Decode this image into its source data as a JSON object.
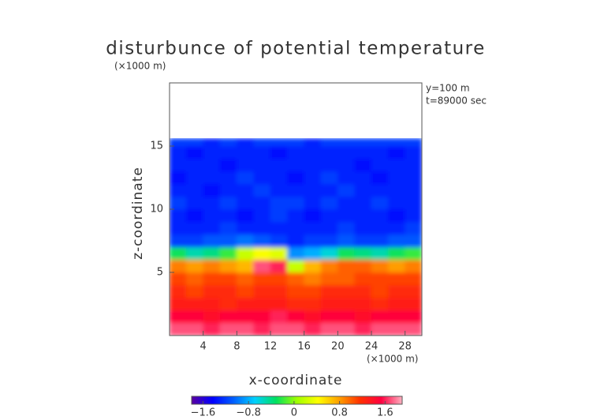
{
  "chart_data": {
    "type": "heatmap",
    "title": "disturbunce of potential temperature",
    "y_unit": "(×1000 m)",
    "x_unit": "(×1000 m)",
    "x_label": "x-coordinate",
    "y_label": "z-coordinate",
    "annotations": [
      "y=100 m",
      "t=89000 sec"
    ],
    "x": [
      0,
      2,
      4,
      6,
      8,
      10,
      12,
      14,
      16,
      18,
      20,
      22,
      24,
      26,
      28,
      30
    ],
    "y": [
      0,
      1,
      2,
      3,
      4,
      5,
      6,
      7,
      8,
      9,
      10,
      11,
      12,
      13,
      14,
      15,
      15.6
    ],
    "values": [
      [
        1.7,
        1.7,
        1.6,
        1.7,
        1.7,
        1.6,
        1.7,
        1.7,
        1.6,
        1.7,
        1.7,
        1.6,
        1.7,
        1.7,
        1.7
      ],
      [
        1.5,
        1.5,
        1.4,
        1.5,
        1.5,
        1.5,
        1.6,
        1.5,
        1.4,
        1.5,
        1.5,
        1.4,
        1.5,
        1.5,
        1.5
      ],
      [
        1.3,
        1.3,
        1.3,
        1.2,
        1.3,
        1.3,
        1.3,
        1.2,
        1.2,
        1.3,
        1.3,
        1.3,
        1.2,
        1.3,
        1.3
      ],
      [
        1.2,
        1.1,
        1.2,
        1.2,
        1.1,
        1.2,
        1.2,
        1.1,
        1.1,
        1.2,
        1.2,
        1.2,
        1.1,
        1.2,
        1.2
      ],
      [
        1.1,
        1.0,
        1.1,
        1.1,
        1.0,
        1.1,
        1.1,
        1.0,
        0.9,
        1.0,
        1.0,
        1.1,
        1.1,
        1.1,
        1.1
      ],
      [
        0.9,
        0.8,
        0.9,
        0.8,
        0.7,
        1.7,
        1.6,
        0.2,
        0.7,
        0.9,
        1.0,
        1.0,
        0.9,
        0.8,
        0.9
      ],
      [
        -0.3,
        -0.5,
        -0.4,
        -0.2,
        0.2,
        0.4,
        0.3,
        -0.9,
        -0.8,
        -0.6,
        -0.3,
        -0.4,
        -0.5,
        -0.3,
        -0.2
      ],
      [
        -1.2,
        -1.2,
        -1.1,
        -1.1,
        -1.0,
        -1.1,
        -1.2,
        -1.3,
        -1.2,
        -1.2,
        -1.1,
        -1.2,
        -1.2,
        -1.1,
        -1.1
      ],
      [
        -1.3,
        -1.3,
        -1.3,
        -1.2,
        -1.3,
        -1.3,
        -1.3,
        -1.3,
        -1.3,
        -1.3,
        -1.2,
        -1.3,
        -1.3,
        -1.3,
        -1.2
      ],
      [
        -1.3,
        -1.4,
        -1.3,
        -1.3,
        -1.4,
        -1.3,
        -1.2,
        -1.3,
        -1.4,
        -1.3,
        -1.3,
        -1.3,
        -1.3,
        -1.4,
        -1.3
      ],
      [
        -1.2,
        -1.3,
        -1.3,
        -1.2,
        -1.3,
        -1.3,
        -1.2,
        -1.2,
        -1.3,
        -1.2,
        -1.3,
        -1.3,
        -1.2,
        -1.3,
        -1.3
      ],
      [
        -1.3,
        -1.3,
        -1.4,
        -1.3,
        -1.3,
        -1.2,
        -1.3,
        -1.3,
        -1.3,
        -1.3,
        -1.2,
        -1.3,
        -1.3,
        -1.3,
        -1.3
      ],
      [
        -1.4,
        -1.3,
        -1.3,
        -1.3,
        -1.2,
        -1.3,
        -1.3,
        -1.4,
        -1.3,
        -1.2,
        -1.3,
        -1.3,
        -1.4,
        -1.3,
        -1.3
      ],
      [
        -1.3,
        -1.3,
        -1.3,
        -1.4,
        -1.3,
        -1.3,
        -1.3,
        -1.3,
        -1.3,
        -1.3,
        -1.3,
        -1.4,
        -1.3,
        -1.3,
        -1.3
      ],
      [
        -1.3,
        -1.4,
        -1.3,
        -1.3,
        -1.3,
        -1.3,
        -1.4,
        -1.3,
        -1.3,
        -1.3,
        -1.3,
        -1.3,
        -1.3,
        -1.4,
        -1.3
      ],
      [
        -1.2,
        -1.2,
        -1.3,
        -1.2,
        -1.3,
        -1.2,
        -1.2,
        -1.2,
        -1.3,
        -1.2,
        -1.2,
        -1.2,
        -1.2,
        -1.2,
        -1.2
      ]
    ],
    "xlim": [
      0,
      30
    ],
    "ylim": [
      0,
      20
    ],
    "xticks": [
      4,
      8,
      12,
      16,
      20,
      24,
      28
    ],
    "yticks": [
      5,
      10,
      15
    ],
    "clim": [
      -1.8,
      1.9
    ],
    "cticks": [
      {
        "value": -1.6,
        "label": "−1.6"
      },
      {
        "value": -0.8,
        "label": "−0.8"
      },
      0,
      0.8,
      1.6
    ],
    "colormap": [
      "#5a00a0",
      "#0000ff",
      "#0060ff",
      "#00d0ff",
      "#00e060",
      "#a0ff00",
      "#ffff00",
      "#ffa000",
      "#ff3000",
      "#ff0040",
      "#ffb0c0"
    ]
  }
}
